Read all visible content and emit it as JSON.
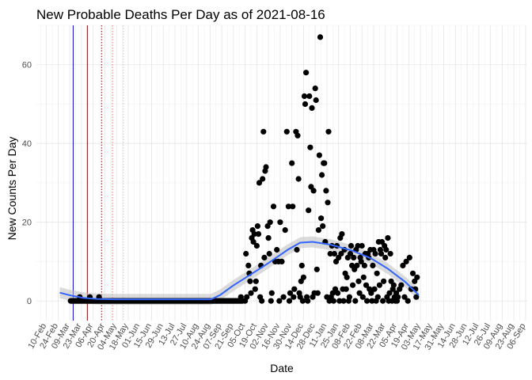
{
  "chart_data": {
    "type": "scatter",
    "title": "New Probable Deaths Per Day as of 2021-08-16",
    "xlabel": "Date",
    "ylabel": "New Counts Per Day",
    "ylim": [
      -5,
      70
    ],
    "yticks": [
      0,
      20,
      40,
      60
    ],
    "xlim": [
      "2020-01-29",
      "2021-09-08"
    ],
    "grid": true,
    "legend": "none",
    "xtick_labels": [
      {
        "date": "2020-02-10",
        "label": "10-Feb"
      },
      {
        "date": "2020-02-24",
        "label": "24-Feb"
      },
      {
        "date": "2020-03-09",
        "label": "09-Mar"
      },
      {
        "date": "2020-03-23",
        "label": "23-Mar"
      },
      {
        "date": "2020-04-06",
        "label": "06-Apr"
      },
      {
        "date": "2020-04-20",
        "label": "20-Apr"
      },
      {
        "date": "2020-05-04",
        "label": "04-May"
      },
      {
        "date": "2020-05-18",
        "label": "18-May"
      },
      {
        "date": "2020-06-01",
        "label": "01-Jun"
      },
      {
        "date": "2020-06-15",
        "label": "15-Jun"
      },
      {
        "date": "2020-06-29",
        "label": "29-Jun"
      },
      {
        "date": "2020-07-13",
        "label": "13-Jul"
      },
      {
        "date": "2020-07-27",
        "label": "27-Jul"
      },
      {
        "date": "2020-08-10",
        "label": "10-Aug"
      },
      {
        "date": "2020-08-24",
        "label": "24-Aug"
      },
      {
        "date": "2020-09-07",
        "label": "07-Sep"
      },
      {
        "date": "2020-09-21",
        "label": "21-Sep"
      },
      {
        "date": "2020-10-05",
        "label": "05-Oct"
      },
      {
        "date": "2020-10-19",
        "label": "19-Oct"
      },
      {
        "date": "2020-11-02",
        "label": "02-Nov"
      },
      {
        "date": "2020-11-16",
        "label": "16-Nov"
      },
      {
        "date": "2020-11-30",
        "label": "30-Nov"
      },
      {
        "date": "2020-12-14",
        "label": "14-Dec"
      },
      {
        "date": "2020-12-28",
        "label": "28-Dec"
      },
      {
        "date": "2021-01-11",
        "label": "11-Jan"
      },
      {
        "date": "2021-01-25",
        "label": "25-Jan"
      },
      {
        "date": "2021-02-08",
        "label": "08-Feb"
      },
      {
        "date": "2021-02-22",
        "label": "22-Feb"
      },
      {
        "date": "2021-03-08",
        "label": "08-Mar"
      },
      {
        "date": "2021-03-22",
        "label": "22-Mar"
      },
      {
        "date": "2021-04-05",
        "label": "05-Apr"
      },
      {
        "date": "2021-04-19",
        "label": "19-Apr"
      },
      {
        "date": "2021-05-03",
        "label": "03-May"
      },
      {
        "date": "2021-05-17",
        "label": "17-May"
      },
      {
        "date": "2021-05-31",
        "label": "31-May"
      },
      {
        "date": "2021-06-14",
        "label": "14-Jun"
      },
      {
        "date": "2021-06-28",
        "label": "28-Jun"
      },
      {
        "date": "2021-07-12",
        "label": "12-Jul"
      },
      {
        "date": "2021-07-26",
        "label": "26-Jul"
      },
      {
        "date": "2021-08-09",
        "label": "09-Aug"
      },
      {
        "date": "2021-08-23",
        "label": "23-Aug"
      },
      {
        "date": "2021-09-06",
        "label": "06-Sep"
      }
    ],
    "vlines": [
      {
        "date": "2020-03-13",
        "color": "#0000cc",
        "style": "solid"
      },
      {
        "date": "2020-03-30",
        "color": "#8b0000",
        "style": "solid"
      },
      {
        "date": "2020-04-16",
        "color": "#8b0000",
        "style": "dotted"
      },
      {
        "date": "2020-04-29",
        "color": "#ff6666",
        "style": "dotted"
      },
      {
        "date": "2020-05-12",
        "color": "#ffaaaa",
        "style": "dotted"
      }
    ],
    "zero_runs": [
      {
        "start": "2020-03-10",
        "end": "2020-10-02"
      }
    ],
    "points": [
      [
        "2020-03-21",
        1
      ],
      [
        "2020-04-02",
        1
      ],
      [
        "2020-04-13",
        1
      ],
      [
        "2020-09-30",
        1
      ],
      [
        "2020-10-05",
        0
      ],
      [
        "2020-10-06",
        12
      ],
      [
        "2020-10-07",
        1
      ],
      [
        "2020-10-09",
        9
      ],
      [
        "2020-10-10",
        7
      ],
      [
        "2020-10-11",
        5
      ],
      [
        "2020-10-12",
        2
      ],
      [
        "2020-10-13",
        16
      ],
      [
        "2020-10-14",
        18
      ],
      [
        "2020-10-15",
        15
      ],
      [
        "2020-10-16",
        17
      ],
      [
        "2020-10-17",
        3
      ],
      [
        "2020-10-18",
        5
      ],
      [
        "2020-10-19",
        14
      ],
      [
        "2020-10-20",
        19
      ],
      [
        "2020-10-21",
        17
      ],
      [
        "2020-10-22",
        30
      ],
      [
        "2020-10-23",
        1
      ],
      [
        "2020-10-24",
        9
      ],
      [
        "2020-10-25",
        0
      ],
      [
        "2020-10-26",
        31
      ],
      [
        "2020-10-27",
        43
      ],
      [
        "2020-10-28",
        11
      ],
      [
        "2020-10-29",
        33
      ],
      [
        "2020-10-30",
        34
      ],
      [
        "2020-11-01",
        19
      ],
      [
        "2020-11-02",
        16
      ],
      [
        "2020-11-03",
        12
      ],
      [
        "2020-11-04",
        20
      ],
      [
        "2020-11-05",
        0
      ],
      [
        "2020-11-06",
        2
      ],
      [
        "2020-11-08",
        24
      ],
      [
        "2020-11-10",
        10
      ],
      [
        "2020-11-12",
        13
      ],
      [
        "2020-11-14",
        10
      ],
      [
        "2020-11-15",
        0
      ],
      [
        "2020-11-16",
        20
      ],
      [
        "2020-11-18",
        10
      ],
      [
        "2020-11-20",
        1
      ],
      [
        "2020-11-22",
        18
      ],
      [
        "2020-11-24",
        43
      ],
      [
        "2020-11-26",
        24
      ],
      [
        "2020-11-27",
        0
      ],
      [
        "2020-11-28",
        2
      ],
      [
        "2020-11-30",
        35
      ],
      [
        "2020-12-01",
        24
      ],
      [
        "2020-12-02",
        1
      ],
      [
        "2020-12-03",
        3
      ],
      [
        "2020-12-05",
        43
      ],
      [
        "2020-12-06",
        13
      ],
      [
        "2020-12-07",
        42
      ],
      [
        "2020-12-08",
        31
      ],
      [
        "2020-12-09",
        2
      ],
      [
        "2020-12-10",
        1
      ],
      [
        "2020-12-11",
        5
      ],
      [
        "2020-12-12",
        9
      ],
      [
        "2020-12-13",
        0
      ],
      [
        "2020-12-14",
        6
      ],
      [
        "2020-12-15",
        52
      ],
      [
        "2020-12-16",
        50
      ],
      [
        "2020-12-17",
        58
      ],
      [
        "2020-12-18",
        1
      ],
      [
        "2020-12-19",
        0
      ],
      [
        "2020-12-20",
        23
      ],
      [
        "2020-12-21",
        52
      ],
      [
        "2020-12-22",
        39
      ],
      [
        "2020-12-23",
        29
      ],
      [
        "2020-12-24",
        49
      ],
      [
        "2020-12-25",
        1
      ],
      [
        "2020-12-26",
        28
      ],
      [
        "2020-12-27",
        2
      ],
      [
        "2020-12-28",
        54
      ],
      [
        "2020-12-29",
        51
      ],
      [
        "2020-12-30",
        8
      ],
      [
        "2020-12-31",
        2
      ],
      [
        "2021-01-01",
        18
      ],
      [
        "2021-01-02",
        37
      ],
      [
        "2021-01-03",
        67
      ],
      [
        "2021-01-04",
        21
      ],
      [
        "2021-01-05",
        32
      ],
      [
        "2021-01-06",
        19
      ],
      [
        "2021-01-07",
        35
      ],
      [
        "2021-01-08",
        35
      ],
      [
        "2021-01-09",
        15
      ],
      [
        "2021-01-10",
        28
      ],
      [
        "2021-01-11",
        1
      ],
      [
        "2021-01-12",
        25
      ],
      [
        "2021-01-13",
        43
      ],
      [
        "2021-01-14",
        0
      ],
      [
        "2021-01-15",
        12
      ],
      [
        "2021-01-16",
        1
      ],
      [
        "2021-01-17",
        14
      ],
      [
        "2021-01-18",
        2
      ],
      [
        "2021-01-19",
        0
      ],
      [
        "2021-01-20",
        12
      ],
      [
        "2021-01-21",
        3
      ],
      [
        "2021-01-22",
        10
      ],
      [
        "2021-01-23",
        14
      ],
      [
        "2021-01-24",
        2
      ],
      [
        "2021-01-25",
        11
      ],
      [
        "2021-01-26",
        0
      ],
      [
        "2021-01-27",
        16
      ],
      [
        "2021-01-28",
        12
      ],
      [
        "2021-01-29",
        17
      ],
      [
        "2021-01-30",
        3
      ],
      [
        "2021-01-31",
        0
      ],
      [
        "2021-02-01",
        13
      ],
      [
        "2021-02-02",
        7
      ],
      [
        "2021-02-03",
        3
      ],
      [
        "2021-02-04",
        6
      ],
      [
        "2021-02-05",
        11
      ],
      [
        "2021-02-06",
        0
      ],
      [
        "2021-02-07",
        1
      ],
      [
        "2021-02-08",
        12
      ],
      [
        "2021-02-09",
        14
      ],
      [
        "2021-02-10",
        9
      ],
      [
        "2021-02-11",
        4
      ],
      [
        "2021-02-12",
        11
      ],
      [
        "2021-02-13",
        8
      ],
      [
        "2021-02-14",
        0
      ],
      [
        "2021-02-15",
        13
      ],
      [
        "2021-02-16",
        9
      ],
      [
        "2021-02-17",
        14
      ],
      [
        "2021-02-18",
        5
      ],
      [
        "2021-02-19",
        2
      ],
      [
        "2021-02-20",
        11
      ],
      [
        "2021-02-21",
        10
      ],
      [
        "2021-02-22",
        14
      ],
      [
        "2021-02-23",
        1
      ],
      [
        "2021-02-24",
        6
      ],
      [
        "2021-02-25",
        9
      ],
      [
        "2021-02-26",
        12
      ],
      [
        "2021-02-27",
        4
      ],
      [
        "2021-02-28",
        0
      ],
      [
        "2021-03-01",
        12
      ],
      [
        "2021-03-02",
        11
      ],
      [
        "2021-03-03",
        3
      ],
      [
        "2021-03-04",
        13
      ],
      [
        "2021-03-05",
        2
      ],
      [
        "2021-03-06",
        0
      ],
      [
        "2021-03-07",
        9
      ],
      [
        "2021-03-08",
        13
      ],
      [
        "2021-03-09",
        3
      ],
      [
        "2021-03-10",
        12
      ],
      [
        "2021-03-11",
        0
      ],
      [
        "2021-03-12",
        7
      ],
      [
        "2021-03-13",
        1
      ],
      [
        "2021-03-14",
        15
      ],
      [
        "2021-03-15",
        4
      ],
      [
        "2021-03-16",
        13
      ],
      [
        "2021-03-17",
        12
      ],
      [
        "2021-03-18",
        15
      ],
      [
        "2021-03-19",
        0
      ],
      [
        "2021-03-20",
        5
      ],
      [
        "2021-03-21",
        14
      ],
      [
        "2021-03-22",
        11
      ],
      [
        "2021-03-23",
        13
      ],
      [
        "2021-03-24",
        1
      ],
      [
        "2021-03-25",
        16
      ],
      [
        "2021-03-26",
        0
      ],
      [
        "2021-03-27",
        2
      ],
      [
        "2021-03-28",
        12
      ],
      [
        "2021-03-29",
        5
      ],
      [
        "2021-03-30",
        0
      ],
      [
        "2021-03-31",
        3
      ],
      [
        "2021-04-01",
        4
      ],
      [
        "2021-04-02",
        1
      ],
      [
        "2021-04-03",
        0
      ],
      [
        "2021-04-04",
        2
      ],
      [
        "2021-04-05",
        0
      ],
      [
        "2021-04-06",
        1
      ],
      [
        "2021-04-08",
        3
      ],
      [
        "2021-04-10",
        4
      ],
      [
        "2021-04-12",
        9
      ],
      [
        "2021-04-14",
        1
      ],
      [
        "2021-04-16",
        10
      ],
      [
        "2021-04-18",
        0
      ],
      [
        "2021-04-20",
        11
      ],
      [
        "2021-04-22",
        3
      ],
      [
        "2021-04-24",
        7
      ],
      [
        "2021-04-26",
        5
      ],
      [
        "2021-04-27",
        3
      ],
      [
        "2021-04-28",
        1
      ],
      [
        "2021-04-29",
        6
      ]
    ],
    "trend": [
      [
        "2020-02-26",
        2.1
      ],
      [
        "2020-03-10",
        1.4
      ],
      [
        "2020-03-25",
        0.8
      ],
      [
        "2020-04-10",
        0.5
      ],
      [
        "2020-05-01",
        0.4
      ],
      [
        "2020-06-01",
        0.4
      ],
      [
        "2020-07-01",
        0.4
      ],
      [
        "2020-08-01",
        0.4
      ],
      [
        "2020-08-25",
        0.4
      ],
      [
        "2020-09-05",
        1.5
      ],
      [
        "2020-09-20",
        3.8
      ],
      [
        "2020-10-10",
        6.5
      ],
      [
        "2020-11-01",
        9.5
      ],
      [
        "2020-11-25",
        13.0
      ],
      [
        "2020-12-10",
        14.8
      ],
      [
        "2020-12-25",
        15.0
      ],
      [
        "2021-01-15",
        14.3
      ],
      [
        "2021-02-10",
        12.8
      ],
      [
        "2021-03-05",
        10.8
      ],
      [
        "2021-03-25",
        8.2
      ],
      [
        "2021-04-15",
        4.8
      ],
      [
        "2021-05-01",
        1.5
      ]
    ]
  }
}
